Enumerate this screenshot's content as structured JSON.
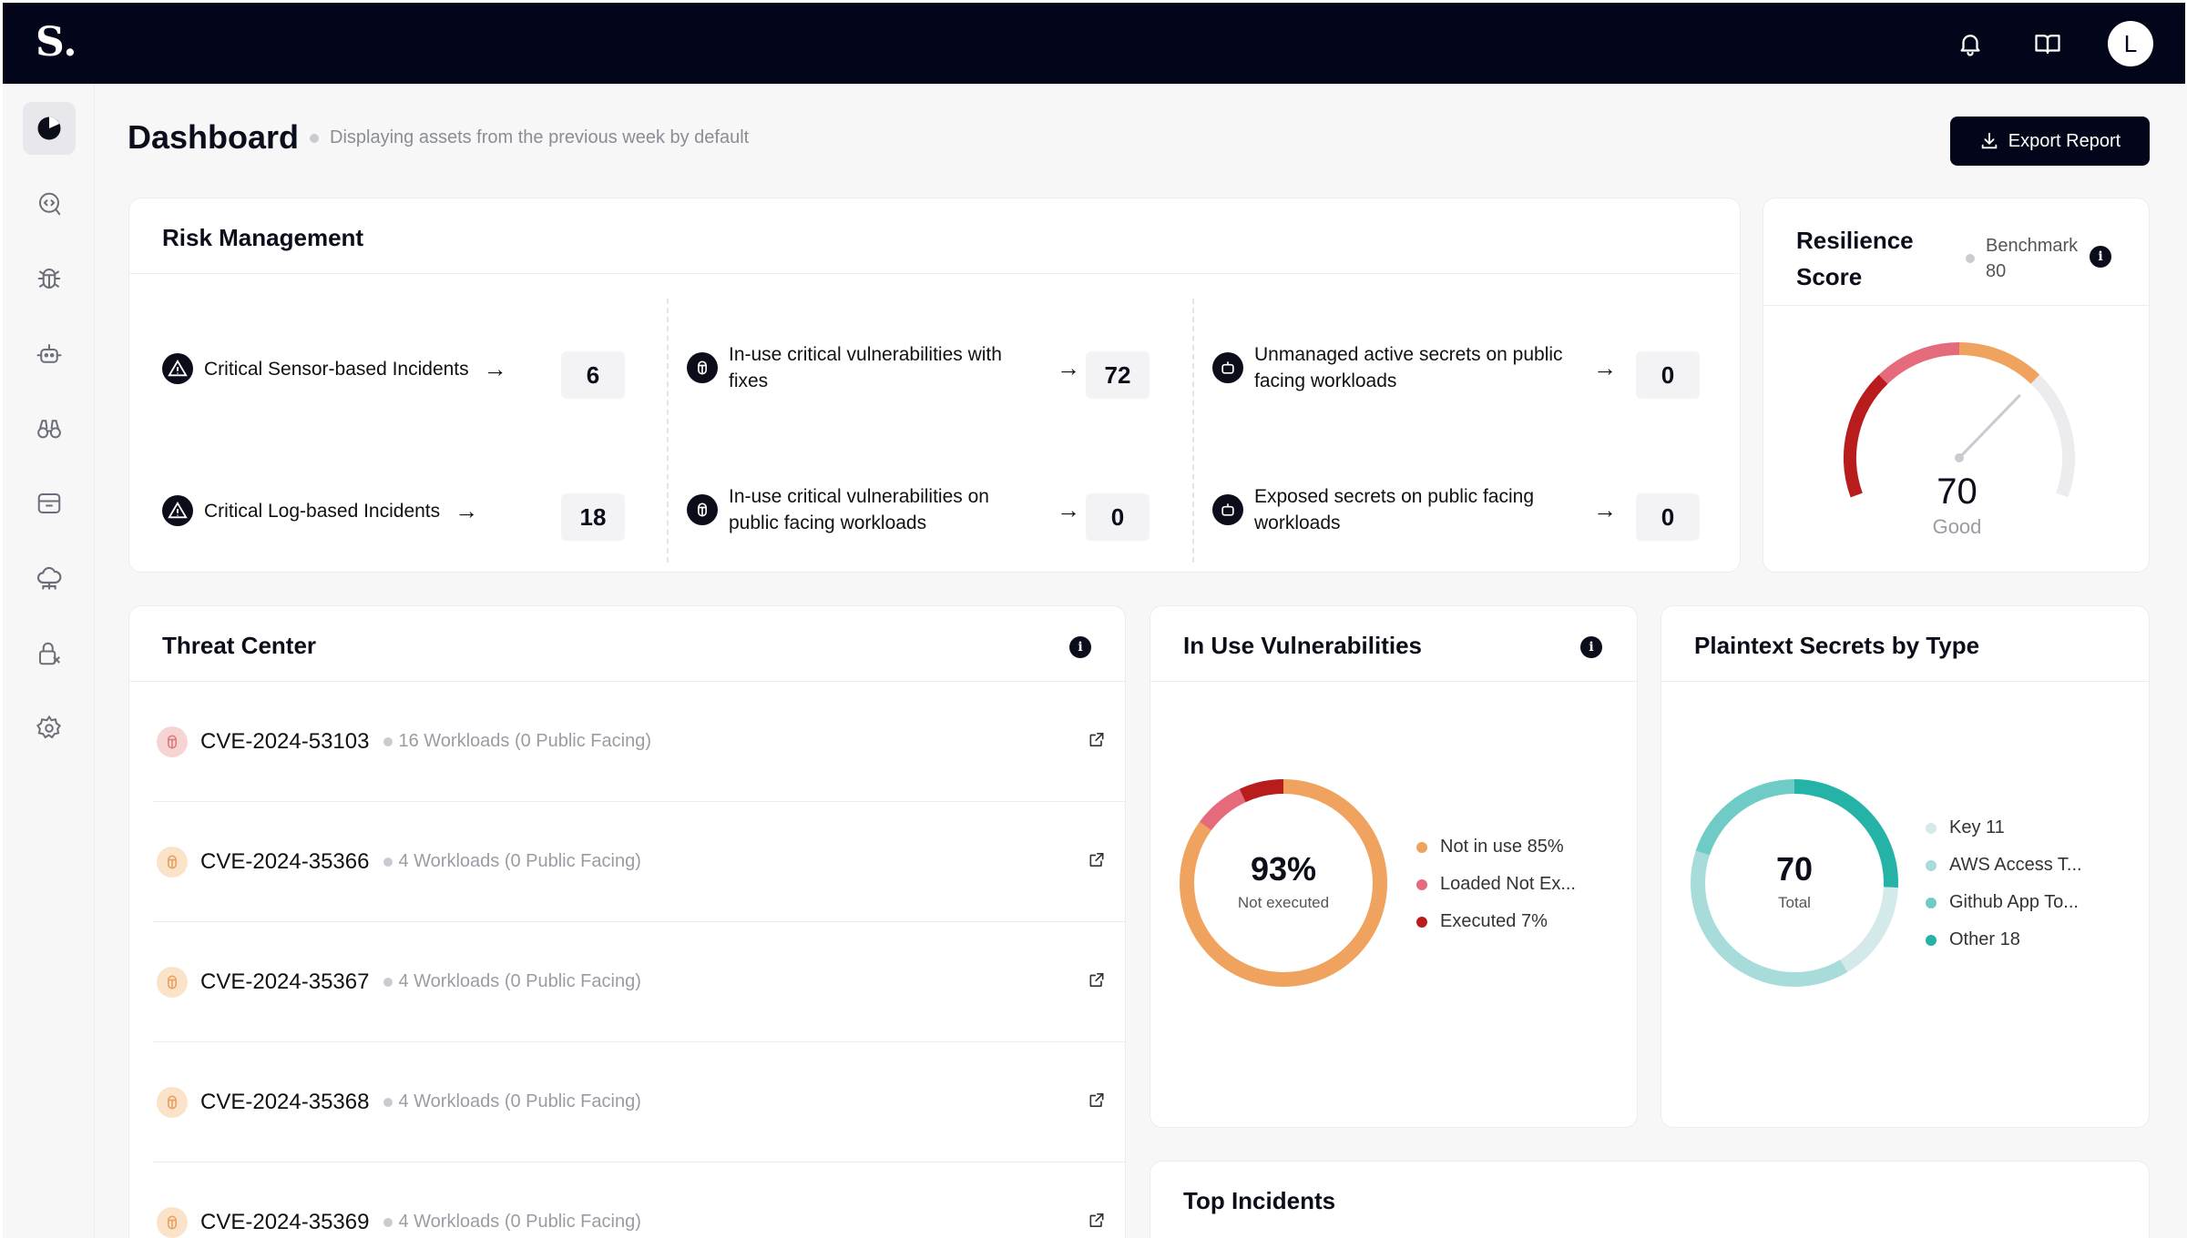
{
  "app": {
    "logo_text": "S.",
    "avatar_initial": "L"
  },
  "header": {
    "title": "Dashboard",
    "subtitle": "Displaying assets from the previous week by default",
    "export_label": "Export Report"
  },
  "sidebar": {
    "items": [
      {
        "icon": "dashboard-pie-icon",
        "active": true
      },
      {
        "icon": "code-scan-icon"
      },
      {
        "icon": "bug-icon"
      },
      {
        "icon": "robot-icon"
      },
      {
        "icon": "binoculars-icon"
      },
      {
        "icon": "archive-icon"
      },
      {
        "icon": "cloud-network-icon"
      },
      {
        "icon": "lock-icon"
      },
      {
        "icon": "gear-icon"
      }
    ]
  },
  "risk_management": {
    "title": "Risk Management",
    "items": [
      {
        "label": "Critical Sensor-based Incidents",
        "count": "6",
        "icon": "warning-icon"
      },
      {
        "label": "Critical Log-based Incidents",
        "count": "18",
        "icon": "warning-icon"
      },
      {
        "label_line1": "In-use critical vulnerabilities with",
        "label_line2": "fixes",
        "count": "72",
        "icon": "bug-icon"
      },
      {
        "label_line1": "In-use critical vulnerabilities on",
        "label_line2": "public facing workloads",
        "count": "0",
        "icon": "bug-icon"
      },
      {
        "label_line1": "Unmanaged active secrets on public",
        "label_line2": "facing workloads",
        "count": "0",
        "icon": "robot-icon"
      },
      {
        "label_line1": "Exposed secrets on public facing",
        "label_line2": "workloads",
        "count": "0",
        "icon": "robot-icon"
      }
    ]
  },
  "resilience": {
    "title_line1": "Resilience",
    "title_line2": "Score",
    "benchmark_label": "Benchmark",
    "benchmark_value": "80",
    "score": "70",
    "score_label": "Good",
    "score_value": 70,
    "colors": {
      "low": "#b91c1c",
      "mid": "#e56b7c",
      "high": "#f0a35e",
      "track": "#ececef"
    }
  },
  "threat_center": {
    "title": "Threat Center",
    "rows": [
      {
        "cve": "CVE-2024-53103",
        "workloads": "16 Workloads (0 Public Facing)",
        "severity_color": "#f7d4d4",
        "icon_color": "#e07b7b"
      },
      {
        "cve": "CVE-2024-35366",
        "workloads": "4 Workloads (0 Public Facing)",
        "severity_color": "#fbe3c9",
        "icon_color": "#e8a265"
      },
      {
        "cve": "CVE-2024-35367",
        "workloads": "4 Workloads (0 Public Facing)",
        "severity_color": "#fbe3c9",
        "icon_color": "#e8a265"
      },
      {
        "cve": "CVE-2024-35368",
        "workloads": "4 Workloads (0 Public Facing)",
        "severity_color": "#fbe3c9",
        "icon_color": "#e8a265"
      },
      {
        "cve": "CVE-2024-35369",
        "workloads": "4 Workloads (0 Public Facing)",
        "severity_color": "#fbe3c9",
        "icon_color": "#e8a265"
      }
    ]
  },
  "in_use_vulns": {
    "title": "In Use Vulnerabilities",
    "center_value": "93%",
    "center_label": "Not executed",
    "legend": [
      {
        "label": "Not in use 85%",
        "color": "#f0a35e"
      },
      {
        "label": "Loaded Not Ex...",
        "color": "#e56b7c"
      },
      {
        "label": "Executed 7%",
        "color": "#b91c1c"
      }
    ],
    "segments": [
      {
        "value": 85,
        "color": "#f0a35e"
      },
      {
        "value": 8,
        "color": "#e56b7c"
      },
      {
        "value": 7,
        "color": "#b91c1c"
      }
    ]
  },
  "plaintext_secrets": {
    "title": "Plaintext Secrets by Type",
    "center_value": "70",
    "center_label": "Total",
    "legend": [
      {
        "label": "Key 11",
        "color": "#d4e9e9"
      },
      {
        "label": "AWS Access T...",
        "color": "#a8dcdb"
      },
      {
        "label": "Github App To...",
        "color": "#6fcbc5"
      },
      {
        "label": "Other 18",
        "color": "#25b3a7"
      }
    ],
    "segments": [
      {
        "value": 18,
        "color": "#25b3a7"
      },
      {
        "value": 11,
        "color": "#d4e9e9"
      },
      {
        "value": 27,
        "color": "#a8dcdb"
      },
      {
        "value": 14,
        "color": "#6fcbc5"
      }
    ]
  },
  "top_incidents": {
    "title": "Top Incidents"
  }
}
